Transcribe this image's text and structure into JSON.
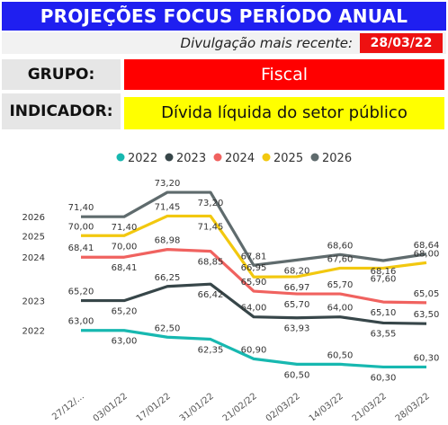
{
  "header": {
    "title": "PROJEÇÕES FOCUS PERÍODO ANUAL"
  },
  "release": {
    "label": "Divulgação mais recente:",
    "date": "28/03/22"
  },
  "grupo": {
    "label": "GRUPO:",
    "value": "Fiscal"
  },
  "indicador": {
    "label": "INDICADOR:",
    "value": "Dívida líquida do setor público"
  },
  "chart_data": {
    "type": "line",
    "categories": [
      "27/12/...",
      "03/01/22",
      "17/01/22",
      "31/01/22",
      "21/02/22",
      "02/03/22",
      "14/03/22",
      "21/03/22",
      "28/03/22"
    ],
    "ylim": [
      59,
      74
    ],
    "legend_position": "top",
    "grid": false,
    "series": [
      {
        "name": "2022",
        "color": "#17b8b0",
        "values": [
          63.0,
          63.0,
          62.5,
          62.35,
          60.9,
          60.5,
          60.5,
          60.3,
          60.3
        ],
        "labels": [
          "63,00",
          "63,00",
          "62,50",
          "62,35",
          "60,90",
          "60,50",
          "60,50",
          "60,30",
          "60,30"
        ]
      },
      {
        "name": "2023",
        "color": "#374649",
        "values": [
          65.2,
          65.2,
          66.25,
          66.42,
          64.0,
          63.93,
          64.0,
          63.55,
          63.5
        ],
        "labels": [
          "65,20",
          "65,20",
          "66,25",
          "66,42",
          "64,00",
          "63,93",
          "64,00",
          "63,55",
          "63,50"
        ]
      },
      {
        "name": "2024",
        "color": "#f0625f",
        "values": [
          68.41,
          68.41,
          68.98,
          68.85,
          65.9,
          65.7,
          65.7,
          65.1,
          65.05
        ],
        "labels": [
          "68,41",
          "68,41",
          "68,98",
          "68,85",
          "65,90",
          "65,70",
          "65,70",
          "65,10",
          "65,05"
        ]
      },
      {
        "name": "2025",
        "color": "#f2c80f",
        "values": [
          70.0,
          70.0,
          71.45,
          71.45,
          66.95,
          66.97,
          67.6,
          67.6,
          68.0
        ],
        "labels": [
          "70,00",
          "70,00",
          "71,45",
          "71,45",
          "66,95",
          "66,97",
          "67,60",
          "67,60",
          "68,00"
        ]
      },
      {
        "name": "2026",
        "color": "#5f6b6d",
        "values": [
          71.4,
          71.4,
          73.2,
          73.2,
          67.81,
          68.2,
          68.6,
          68.16,
          68.64
        ],
        "labels": [
          "71,40",
          "71,40",
          "73,20",
          "73,20",
          "67,81",
          "68,20",
          "68,60",
          "68,16",
          "68,64"
        ]
      }
    ],
    "row_labels": [
      "2026",
      "2025",
      "2024",
      "2023",
      "2022"
    ]
  }
}
